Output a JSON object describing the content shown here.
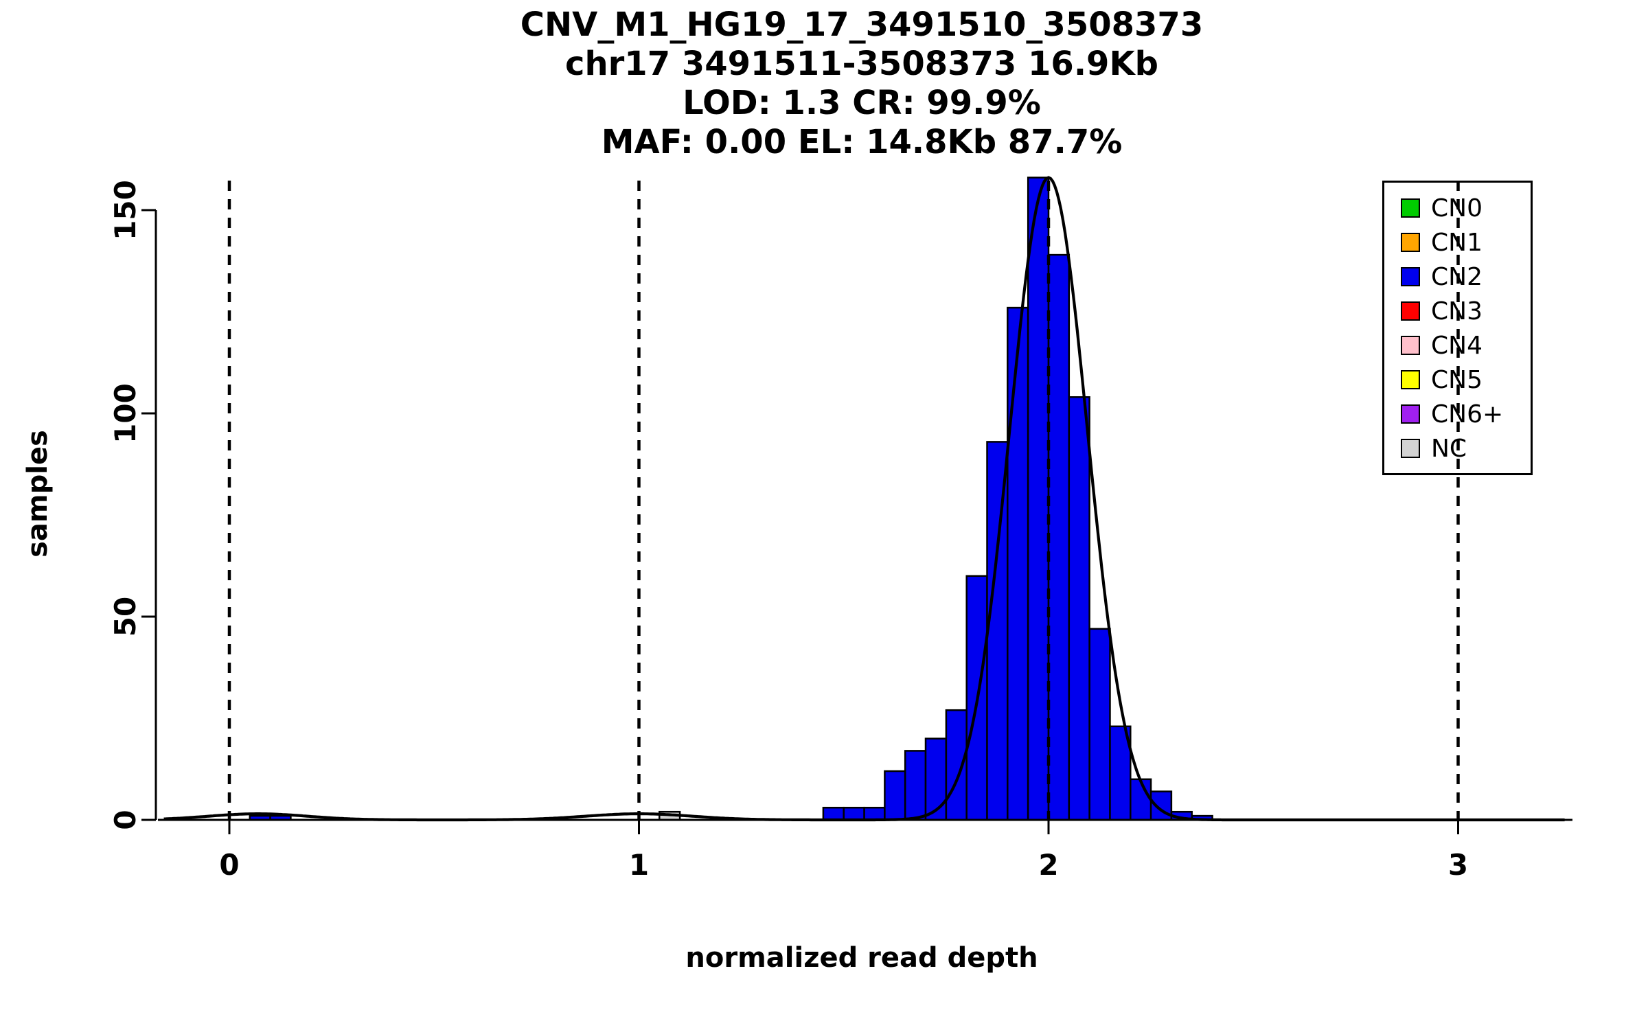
{
  "chart_data": {
    "type": "bar",
    "subtype": "histogram-with-density",
    "title_lines": [
      "CNV_M1_HG19_17_3491510_3508373",
      "chr17 3491511-3508373 16.9Kb",
      "LOD: 1.3 CR: 99.9%",
      "MAF: 0.00 EL: 14.8Kb 87.7%"
    ],
    "xlabel": "normalized read depth",
    "ylabel": "samples",
    "xlim": [
      -0.17,
      3.27
    ],
    "ylim": [
      0,
      160
    ],
    "x_ticks": [
      "0",
      "1",
      "2",
      "3"
    ],
    "x_tick_values": [
      0,
      1,
      2,
      3
    ],
    "y_ticks": [
      "0",
      "50",
      "100",
      "150"
    ],
    "y_tick_values": [
      0,
      50,
      100,
      150
    ],
    "grid": false,
    "bin_width": 0.05,
    "bars": [
      {
        "x": 0.05,
        "height": 1,
        "group": "CN2"
      },
      {
        "x": 0.1,
        "height": 1,
        "group": "CN2"
      },
      {
        "x": 1.05,
        "height": 2,
        "group": "NC"
      },
      {
        "x": 1.45,
        "height": 3,
        "group": "CN2"
      },
      {
        "x": 1.5,
        "height": 3,
        "group": "CN2"
      },
      {
        "x": 1.55,
        "height": 3,
        "group": "CN2"
      },
      {
        "x": 1.6,
        "height": 12,
        "group": "CN2"
      },
      {
        "x": 1.65,
        "height": 17,
        "group": "CN2"
      },
      {
        "x": 1.7,
        "height": 20,
        "group": "CN2"
      },
      {
        "x": 1.75,
        "height": 27,
        "group": "CN2"
      },
      {
        "x": 1.8,
        "height": 60,
        "group": "CN2"
      },
      {
        "x": 1.85,
        "height": 93,
        "group": "CN2"
      },
      {
        "x": 1.9,
        "height": 126,
        "group": "CN2"
      },
      {
        "x": 1.95,
        "height": 158,
        "group": "CN2"
      },
      {
        "x": 2.0,
        "height": 139,
        "group": "CN2"
      },
      {
        "x": 2.05,
        "height": 104,
        "group": "CN2"
      },
      {
        "x": 2.1,
        "height": 47,
        "group": "CN2"
      },
      {
        "x": 2.15,
        "height": 23,
        "group": "CN2"
      },
      {
        "x": 2.2,
        "height": 10,
        "group": "CN2"
      },
      {
        "x": 2.25,
        "height": 7,
        "group": "CN2"
      },
      {
        "x": 2.3,
        "height": 2,
        "group": "CN2"
      },
      {
        "x": 2.35,
        "height": 1,
        "group": "CN2"
      }
    ],
    "density_curve": {
      "color": "#000000",
      "components": [
        {
          "mean": 2.0,
          "sd": 0.095,
          "peak": 158
        },
        {
          "mean": 1.0,
          "sd": 0.13,
          "peak": 1.5
        },
        {
          "mean": 0.07,
          "sd": 0.12,
          "peak": 1.5
        }
      ]
    },
    "dashed_guides_x": [
      0,
      1,
      2,
      3
    ],
    "legend": {
      "position": "top-right",
      "entries": [
        {
          "label": "CN0",
          "color": "#00cc00"
        },
        {
          "label": "CN1",
          "color": "#ffa500"
        },
        {
          "label": "CN2",
          "color": "#0000ee"
        },
        {
          "label": "CN3",
          "color": "#ff0000"
        },
        {
          "label": "CN4",
          "color": "#ffc0cb"
        },
        {
          "label": "CN5",
          "color": "#ffff00"
        },
        {
          "label": "CN6+",
          "color": "#a020f0"
        },
        {
          "label": "NC",
          "color": "#d3d3d3"
        }
      ]
    }
  }
}
